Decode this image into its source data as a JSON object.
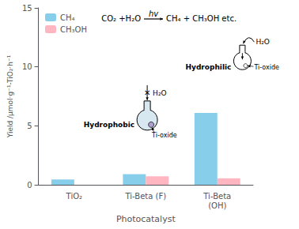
{
  "chart_data": {
    "type": "bar",
    "categories": [
      "TiO₂",
      "Ti-Beta (F)",
      "Ti-Beta\n(OH)"
    ],
    "series": [
      {
        "name": "CH₄",
        "color": "#87CEEB",
        "values": [
          0.45,
          0.9,
          6.1
        ]
      },
      {
        "name": "CH₃OH",
        "color": "#FFB6C1",
        "values": [
          0.0,
          0.72,
          0.55
        ]
      }
    ],
    "xlabel": "Photocatalyst",
    "ylabel": "Yield /μmol·g⁻¹-TiO₂·h⁻¹",
    "ylim": [
      0,
      15
    ],
    "yticks": [
      0,
      5,
      10,
      15
    ],
    "grid": false,
    "legend": "upper left",
    "annotations": [
      "CO₂ +H₂O",
      "hv",
      "CH₄ + CH₃OH etc.",
      "H₂O",
      "✕",
      "Hydrophobic",
      "Ti-oxide",
      "H₂O",
      "Hydrophilic",
      "Ti-oxide"
    ]
  }
}
